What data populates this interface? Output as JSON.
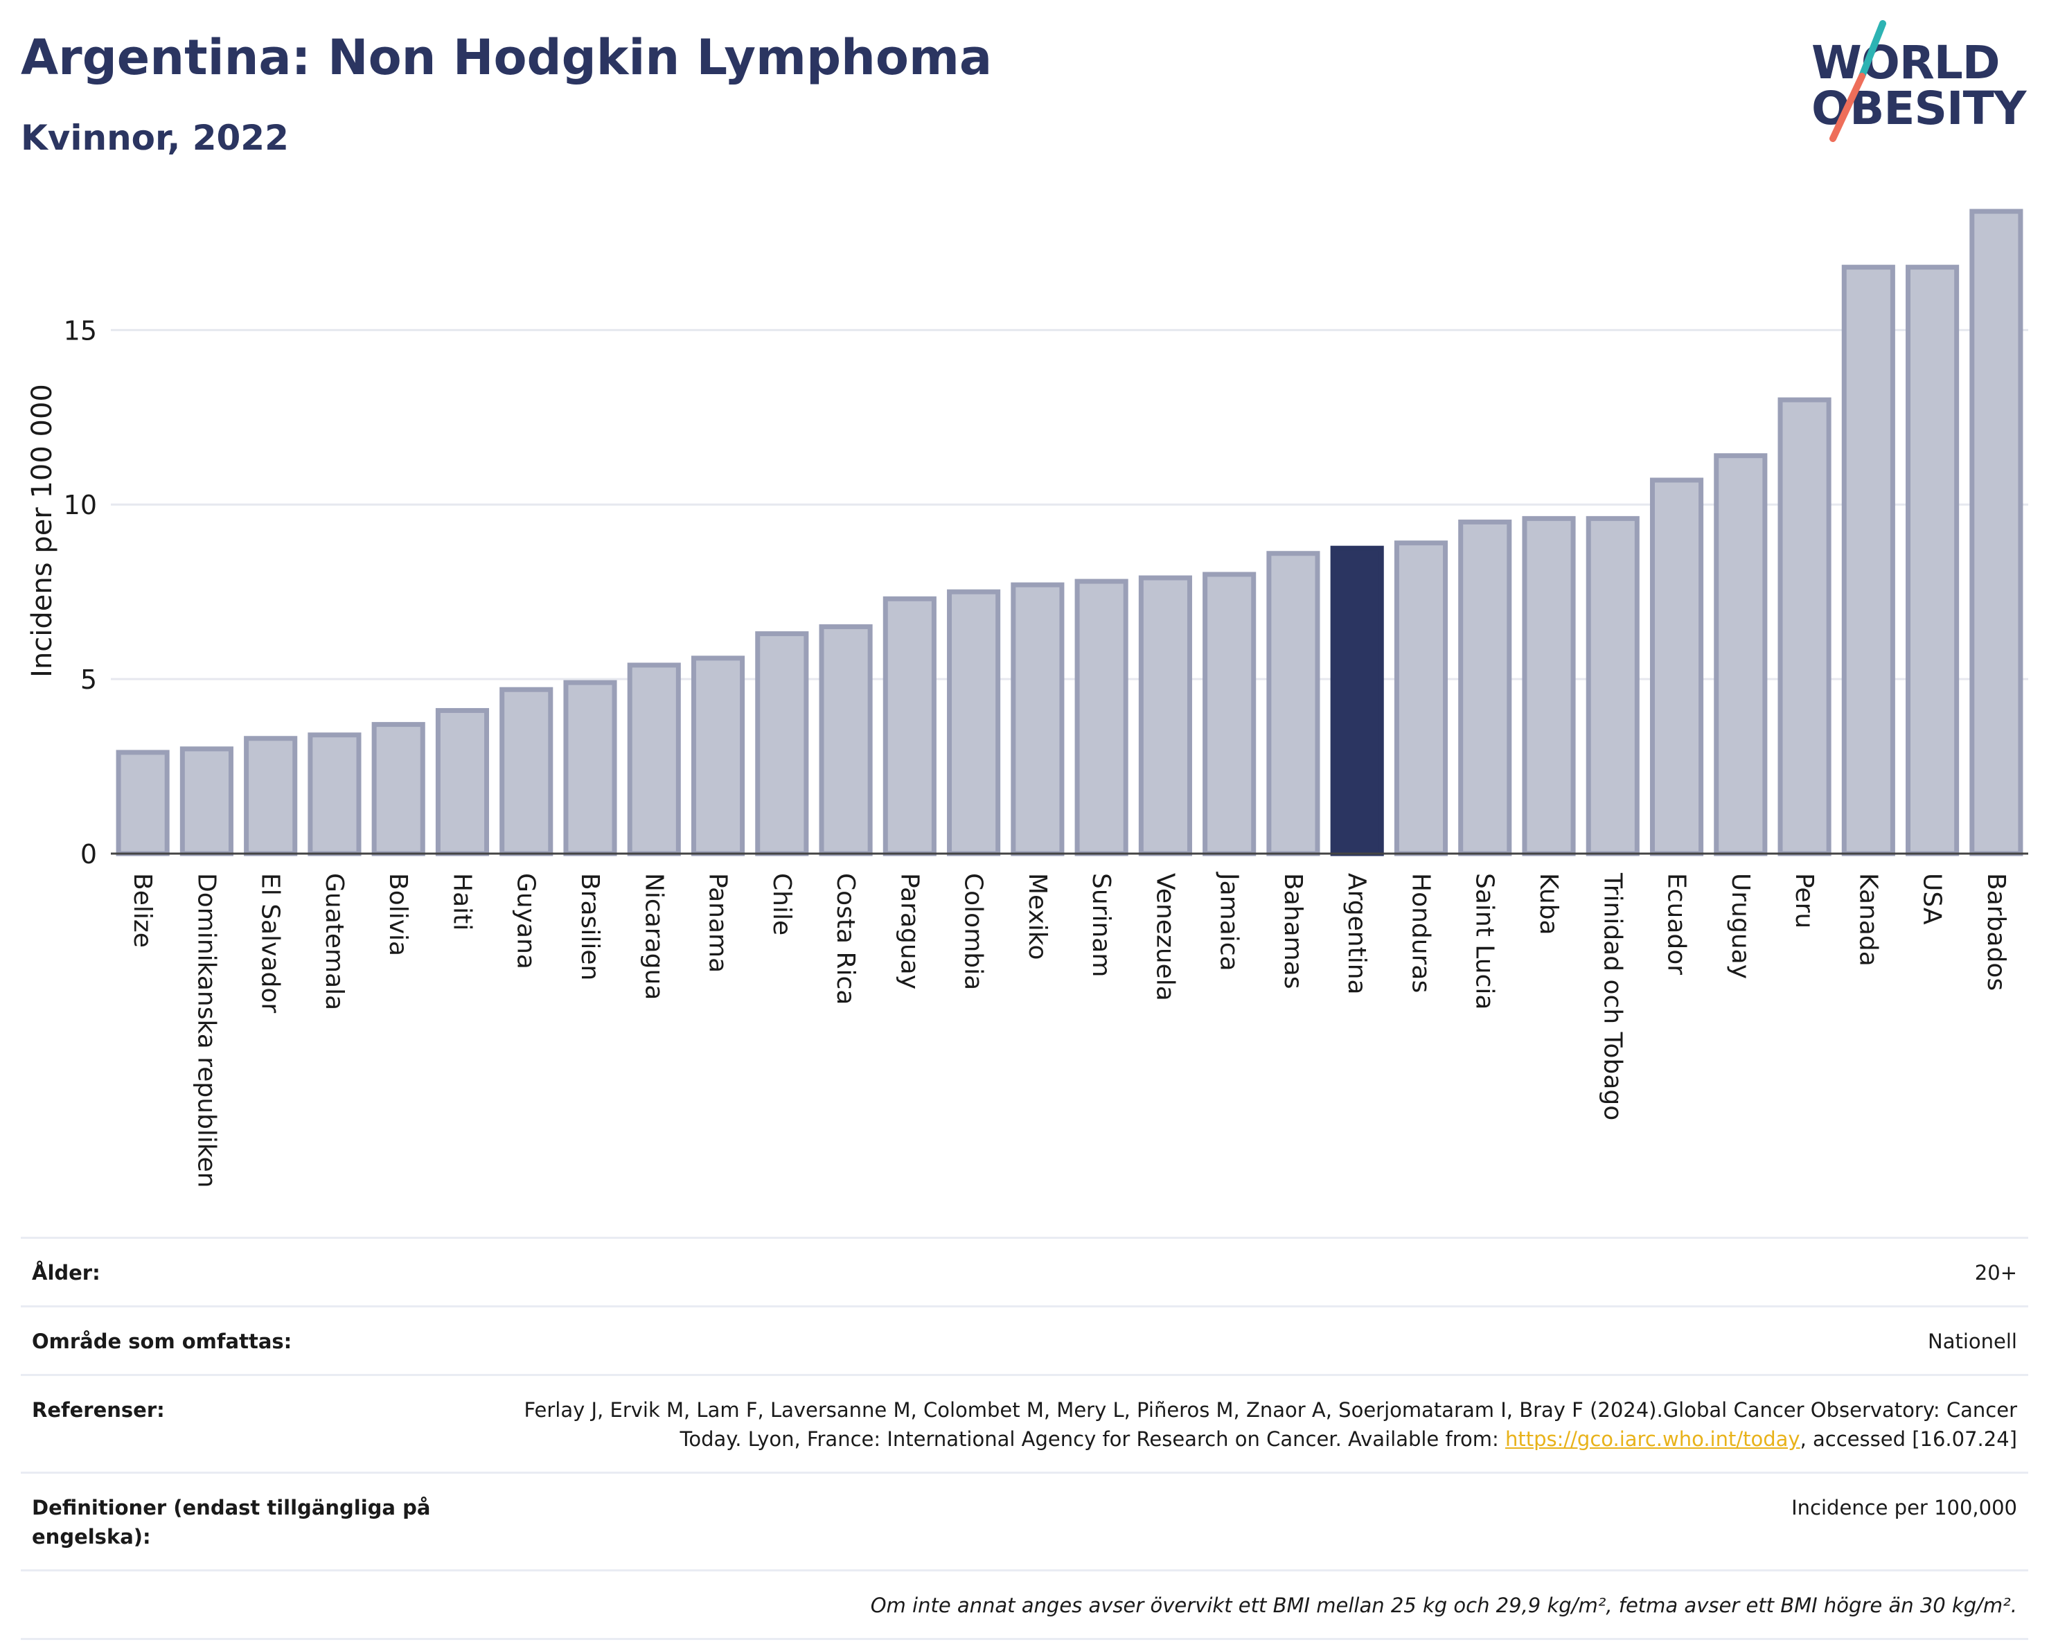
{
  "header": {
    "title": "Argentina: Non Hodgkin Lymphoma",
    "subtitle": "Kvinnor, 2022",
    "logo_line1": "WORLD",
    "logo_line2": "OBESITY"
  },
  "colors": {
    "bar": "#bfc3d1",
    "bar_border": "#9a9fb7",
    "highlight": "#2b3561",
    "grid": "#e6e8ef",
    "logo_teal": "#2db3b3",
    "logo_coral": "#ee6e5a"
  },
  "chart_data": {
    "type": "bar",
    "title": "Argentina: Non Hodgkin Lymphoma",
    "subtitle": "Kvinnor, 2022",
    "ylabel": "Incidens per 100 000",
    "xlabel": "",
    "ylim": [
      0,
      18.5
    ],
    "yticks": [
      0,
      5,
      10,
      15
    ],
    "grid": true,
    "highlight": "Argentina",
    "categories": [
      "Belize",
      "Dominikanska republiken",
      "El Salvador",
      "Guatemala",
      "Bolivia",
      "Haiti",
      "Guyana",
      "Brasilien",
      "Nicaragua",
      "Panama",
      "Chile",
      "Costa Rica",
      "Paraguay",
      "Colombia",
      "Mexiko",
      "Surinam",
      "Venezuela",
      "Jamaica",
      "Bahamas",
      "Argentina",
      "Honduras",
      "Saint Lucia",
      "Kuba",
      "Trinidad och Tobago",
      "Ecuador",
      "Uruguay",
      "Peru",
      "Kanada",
      "USA",
      "Barbados"
    ],
    "values": [
      2.9,
      3.0,
      3.3,
      3.4,
      3.7,
      4.1,
      4.7,
      4.9,
      5.4,
      5.6,
      6.3,
      6.5,
      7.3,
      7.5,
      7.7,
      7.8,
      7.9,
      8.0,
      8.6,
      8.75,
      8.9,
      9.5,
      9.6,
      9.6,
      10.7,
      11.4,
      13.0,
      16.8,
      16.8,
      18.4
    ]
  },
  "info": {
    "age_label": "Ålder:",
    "age_value": "20+",
    "area_label": "Område som omfattas:",
    "area_value": "Nationell",
    "ref_label": "Referenser:",
    "ref_text_1": "Ferlay J, Ervik M, Lam F, Laversanne M, Colombet M, Mery L, Piñeros M, Znaor A, Soerjomataram I, Bray F (2024).Global Cancer Observatory: Cancer Today. Lyon, France: International Agency for Research on Cancer. Available from: ",
    "ref_link": "https://gco.iarc.who.int/today",
    "ref_text_2": ", accessed [16.07.24]",
    "def_label": "Definitioner (endast tillgängliga på engelska):",
    "def_value": "Incidence per 100,000",
    "note": "Om inte annat anges avser övervikt ett BMI mellan 25 kg och 29,9 kg/m², fetma avser ett BMI högre än 30 kg/m²."
  }
}
